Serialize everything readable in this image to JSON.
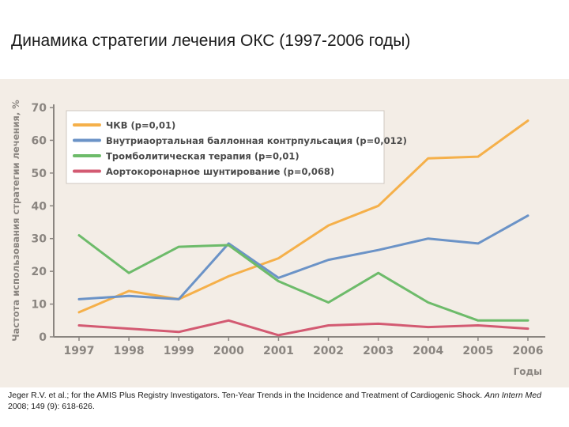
{
  "page": {
    "title": "Динамика стратегии лечения ОКС (1997-2006 годы)"
  },
  "chart_data": {
    "type": "line",
    "title": "",
    "ylabel": "Частота использования стратегии лечения, %",
    "xlabel": "Годы",
    "ylim": [
      0,
      70
    ],
    "yticks": [
      0,
      10,
      20,
      30,
      40,
      50,
      60,
      70
    ],
    "grid": false,
    "legend_position": "top-left",
    "categories": [
      "1997",
      "1998",
      "1999",
      "2000",
      "2001",
      "2002",
      "2003",
      "2004",
      "2005",
      "2006"
    ],
    "series": [
      {
        "name": "ЧКВ (p=0,01)",
        "color": "#f5b04a",
        "values": [
          7.5,
          14,
          11.5,
          18.5,
          24,
          34,
          40,
          54.5,
          55,
          66
        ]
      },
      {
        "name": "Внутриаортальная баллонная контрпульсация (p=0,012)",
        "color": "#6b93c7",
        "values": [
          11.5,
          12.5,
          11.5,
          28.5,
          18,
          23.5,
          26.5,
          30,
          28.5,
          37
        ]
      },
      {
        "name": "Тромболитическая терапия (p=0,01)",
        "color": "#6dbb6a",
        "values": [
          31,
          19.5,
          27.5,
          28,
          17,
          10.5,
          19.5,
          10.5,
          5,
          5
        ]
      },
      {
        "name": "Аортокоронарное шунтирование (p=0,068)",
        "color": "#d35a72",
        "values": [
          3.5,
          2.5,
          1.5,
          5,
          0.5,
          3.5,
          4,
          3,
          3.5,
          2.5
        ]
      }
    ]
  },
  "citation": {
    "text_before": "Jeger R.V. et al.; for the AMIS Plus Registry Investigators. Ten-Year Trends in the Incidence and Treatment of Cardiogenic Shock.",
    "journal": "Ann Intern Med",
    "text_after": "2008; 149 (9): 618-626."
  }
}
